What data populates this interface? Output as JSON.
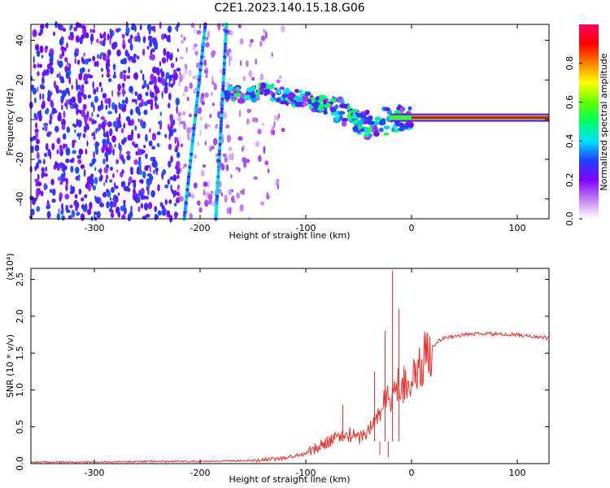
{
  "title": "C2E1.2023.140.15.18.G06",
  "chart_data": [
    {
      "type": "heatmap",
      "xlabel": "Height of straight line (km)",
      "ylabel": "Frequency (Hz)",
      "xlim": [
        -360,
        130
      ],
      "ylim": [
        -50,
        48
      ],
      "xticks": [
        -300,
        -200,
        -100,
        0,
        100
      ],
      "yticks": [
        -40,
        -20,
        0,
        20,
        40
      ],
      "colorbar": {
        "label": "Normalized spectral amplitude",
        "range": [
          0.0,
          1.0
        ],
        "ticks": [
          0.0,
          0.2,
          0.4,
          0.6,
          0.8
        ],
        "tick_labels": [
          "0.0",
          "0.2",
          "0.4",
          "0.6",
          "0.8"
        ],
        "colors": [
          "#ffffff",
          "#c080f0",
          "#8000ff",
          "#2040ff",
          "#00e0ff",
          "#00ff60",
          "#60ff00",
          "#ffff00",
          "#ff8000",
          "#ff0000",
          "#ff0060"
        ]
      },
      "features": {
        "tone_freq_hz": 1,
        "tone_start_km": 0,
        "diagonal_1": {
          "x": [
            -215,
            -195
          ],
          "y": [
            -50,
            48
          ]
        },
        "diagonal_2": {
          "x": [
            -185,
            -175
          ],
          "y": [
            -50,
            48
          ]
        },
        "arc_x_km": [
          -175,
          -140,
          -100,
          -70,
          -40,
          -20,
          0
        ],
        "arc_y_hz": [
          12,
          14,
          10,
          5,
          -3,
          0,
          1
        ]
      }
    },
    {
      "type": "line",
      "xlabel": "Height of straight line (km)",
      "ylabel": "SNR (10 * v/v)",
      "yscale_label": "(x10⁴)",
      "xlim": [
        -360,
        130
      ],
      "ylim": [
        0.0,
        2.65
      ],
      "xticks": [
        -300,
        -200,
        -100,
        0,
        100
      ],
      "yticks": [
        0.0,
        0.5,
        1.0,
        1.5,
        2.0,
        2.5
      ],
      "ytick_labels": [
        "0.0",
        "0.5",
        "1.0",
        "1.5",
        "2.0",
        "2.5"
      ],
      "series": [
        {
          "color": "#e8302c",
          "x": [
            -360,
            -300,
            -250,
            -200,
            -160,
            -130,
            -110,
            -100,
            -90,
            -80,
            -70,
            -60,
            -50,
            -40,
            -30,
            -25,
            -20,
            -15,
            -10,
            -5,
            0,
            5,
            10,
            15,
            20,
            25,
            30,
            40,
            50,
            60,
            70,
            80,
            90,
            100,
            110,
            120,
            130
          ],
          "y": [
            0.02,
            0.02,
            0.03,
            0.03,
            0.04,
            0.06,
            0.1,
            0.14,
            0.2,
            0.3,
            0.35,
            0.4,
            0.35,
            0.45,
            0.7,
            0.85,
            0.9,
            1.0,
            1.1,
            1.15,
            1.1,
            1.2,
            1.35,
            1.5,
            1.6,
            1.66,
            1.7,
            1.73,
            1.75,
            1.76,
            1.76,
            1.76,
            1.75,
            1.75,
            1.73,
            1.72,
            1.7
          ]
        }
      ],
      "spikes": [
        {
          "x": -18,
          "y": 2.62
        },
        {
          "x": -12,
          "y": 2.1
        },
        {
          "x": -25,
          "y": 1.8
        },
        {
          "x": -35,
          "y": 1.25
        },
        {
          "x": -65,
          "y": 0.8
        },
        {
          "x": -30,
          "y": 0.12
        },
        {
          "x": -22,
          "y": 0.08
        }
      ]
    }
  ]
}
